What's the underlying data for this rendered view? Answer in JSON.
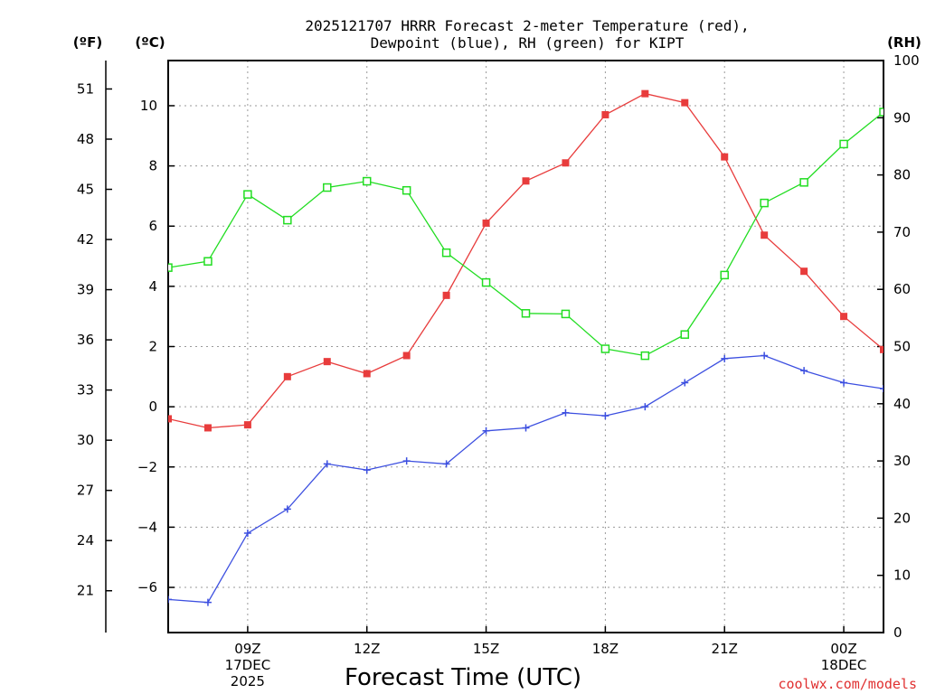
{
  "chart_data": {
    "type": "line",
    "title_line1": "2025121707 HRRR Forecast 2-meter Temperature (red),",
    "title_line2": "Dewpoint (blue), RH (green) for KIPT",
    "xlabel": "Forecast Time (UTC)",
    "credit": "coolwx.com/models",
    "left_outer_unit": "(ºF)",
    "left_inner_unit": "(ºC)",
    "right_unit": "(RH)",
    "x_hours": [
      7,
      8,
      9,
      10,
      11,
      12,
      13,
      14,
      15,
      16,
      17,
      18,
      19,
      20,
      21,
      22,
      23,
      24,
      25
    ],
    "x_ticks": [
      {
        "hour": 9,
        "label": "09Z",
        "sub1": "17DEC",
        "sub2": "2025"
      },
      {
        "hour": 12,
        "label": "12Z",
        "sub1": "",
        "sub2": ""
      },
      {
        "hour": 15,
        "label": "15Z",
        "sub1": "",
        "sub2": ""
      },
      {
        "hour": 18,
        "label": "18Z",
        "sub1": "",
        "sub2": ""
      },
      {
        "hour": 21,
        "label": "21Z",
        "sub1": "",
        "sub2": ""
      },
      {
        "hour": 24,
        "label": "00Z",
        "sub1": "18DEC",
        "sub2": ""
      }
    ],
    "x_range": [
      7,
      25
    ],
    "celsius_range": [
      -7.5,
      11.5
    ],
    "celsius_ticks": [
      -6,
      -4,
      -2,
      0,
      2,
      4,
      6,
      8,
      10
    ],
    "celsius_tick_labels": [
      "−6",
      "−4",
      "−2",
      "0",
      "2",
      "4",
      "6",
      "8",
      "10"
    ],
    "fahrenheit_ticks": [
      21,
      24,
      27,
      30,
      33,
      36,
      39,
      42,
      45,
      48,
      51
    ],
    "rh_range": [
      0,
      100
    ],
    "rh_ticks": [
      0,
      10,
      20,
      30,
      40,
      50,
      60,
      70,
      80,
      90,
      100
    ],
    "series": [
      {
        "name": "Temperature",
        "unit": "C",
        "color": "#e83c3c",
        "marker": "filled-square",
        "values": [
          -0.4,
          -0.7,
          -0.6,
          1.0,
          1.5,
          1.1,
          1.7,
          3.7,
          6.1,
          7.5,
          8.1,
          9.7,
          10.4,
          10.1,
          8.3,
          5.7,
          4.5,
          3.0,
          1.9
        ]
      },
      {
        "name": "Dewpoint",
        "unit": "C",
        "color": "#3c4fe0",
        "marker": "plus",
        "values": [
          -6.4,
          -6.5,
          -4.2,
          -3.4,
          -1.9,
          -2.1,
          -1.8,
          -1.9,
          -0.8,
          -0.7,
          -0.2,
          -0.3,
          0.0,
          0.8,
          1.6,
          1.7,
          1.2,
          0.8,
          0.6
        ]
      },
      {
        "name": "RH",
        "unit": "%",
        "color": "#22dd22",
        "marker": "open-square",
        "values": [
          63.8,
          64.9,
          76.6,
          72.1,
          77.8,
          78.9,
          77.3,
          66.4,
          61.2,
          55.8,
          55.7,
          49.6,
          48.4,
          52.1,
          62.5,
          75.1,
          78.7,
          85.4,
          91.0
        ]
      }
    ]
  }
}
